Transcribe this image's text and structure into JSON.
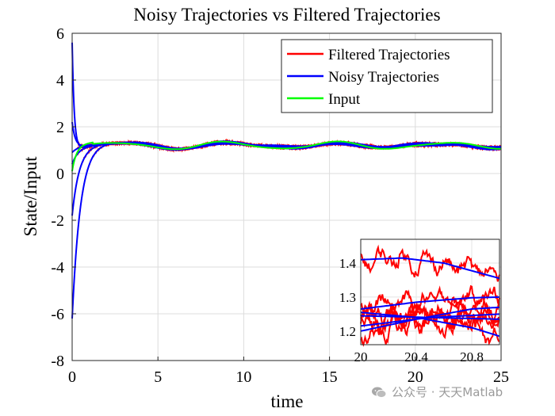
{
  "chart_data": {
    "type": "line",
    "title": "Noisy Trajectories vs Filtered Trajectories",
    "xlabel": "time",
    "ylabel": "State/Input",
    "xlim": [
      0,
      25
    ],
    "ylim": [
      -8,
      6
    ],
    "xticks": [
      0,
      5,
      10,
      15,
      20,
      25
    ],
    "yticks": [
      -8,
      -6,
      -4,
      -2,
      0,
      2,
      4,
      6
    ],
    "grid": true,
    "legend_position": "top-right",
    "series": [
      {
        "name": "Filtered Trajectories",
        "color": "#ff0000"
      },
      {
        "name": "Noisy Trajectories",
        "color": "#0000ff"
      },
      {
        "name": "Input",
        "color": "#00ff00"
      }
    ],
    "initial_states": [
      5.6,
      2.2,
      0.9,
      0.4,
      -1.8,
      -6.2
    ],
    "input_steady_value": 1.2,
    "inset": {
      "xlim": [
        20,
        21
      ],
      "ylim": [
        1.16,
        1.47
      ],
      "xticks": [
        "20",
        "20.4",
        "20.8"
      ],
      "yticks": [
        "1.2",
        "1.3",
        "1.4"
      ],
      "blue_lines": [
        {
          "x": [
            20,
            20.3,
            20.6,
            21
          ],
          "y": [
            1.41,
            1.415,
            1.4,
            1.355
          ]
        },
        {
          "x": [
            20,
            20.4,
            20.8,
            21
          ],
          "y": [
            1.2,
            1.235,
            1.265,
            1.27
          ]
        },
        {
          "x": [
            20,
            20.5,
            21
          ],
          "y": [
            1.215,
            1.24,
            1.25
          ]
        },
        {
          "x": [
            20,
            20.4,
            20.8,
            21
          ],
          "y": [
            1.265,
            1.285,
            1.298,
            1.3
          ]
        },
        {
          "x": [
            20,
            20.5,
            21
          ],
          "y": [
            1.245,
            1.24,
            1.235
          ]
        },
        {
          "x": [
            20,
            20.4,
            20.8,
            21
          ],
          "y": [
            1.255,
            1.24,
            1.21,
            1.185
          ]
        }
      ]
    }
  },
  "watermark": {
    "text": "公众号 · 天天Matlab",
    "icon": "wechat-icon"
  }
}
